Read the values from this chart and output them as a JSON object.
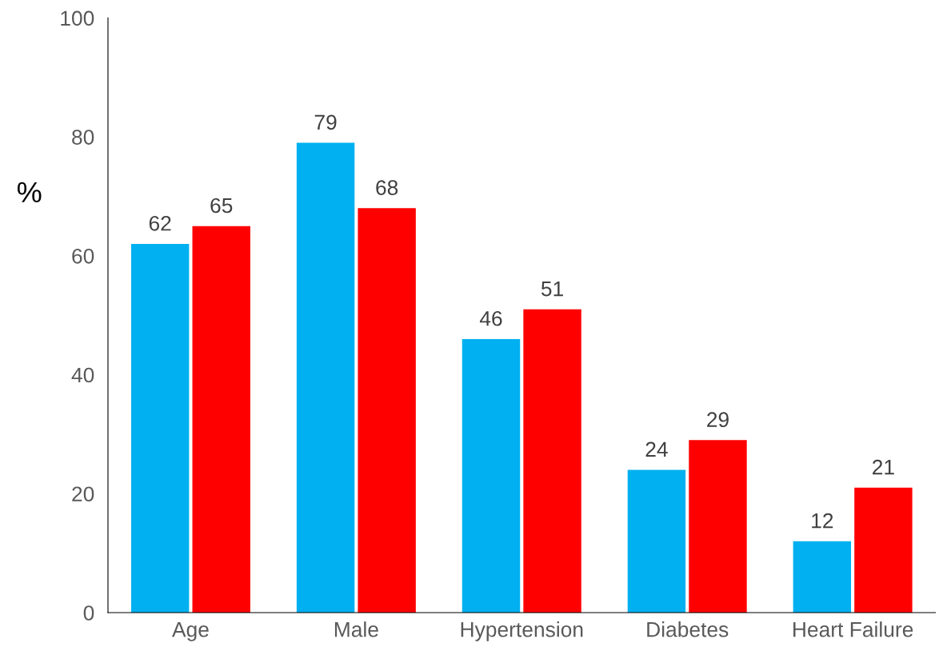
{
  "chart_data": {
    "type": "bar",
    "ylabel": "%",
    "categories": [
      "Age",
      "Male",
      "Hypertension",
      "Diabetes",
      "Heart Failure"
    ],
    "series": [
      {
        "color": "#00b0f0",
        "values": [
          62,
          79,
          46,
          24,
          12
        ]
      },
      {
        "color": "#ff0000",
        "values": [
          65,
          68,
          51,
          29,
          21
        ]
      }
    ],
    "ylim": [
      0,
      100
    ],
    "yticks": [
      0,
      20,
      40,
      60,
      80,
      100
    ],
    "grid": false,
    "legend": false,
    "data_labels": true
  }
}
